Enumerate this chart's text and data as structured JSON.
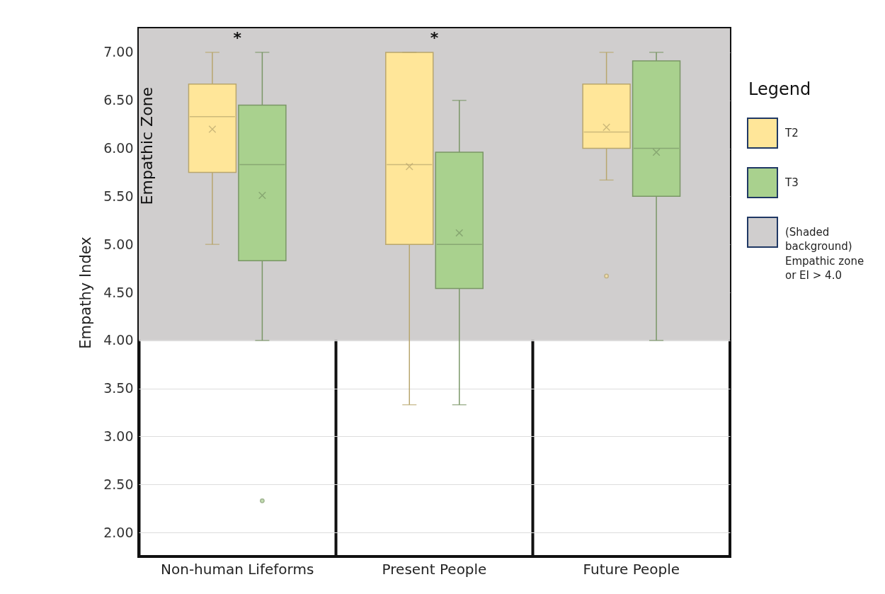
{
  "chart_data": {
    "type": "box",
    "categories": [
      "Non-human Lifeforms",
      "Present People",
      "Future People"
    ],
    "ylabel": "Empathy Index",
    "legend_title": "Legend",
    "legend": "right",
    "grid": "y",
    "ylim": [
      1.75,
      7.25
    ],
    "yticks": [
      {
        "value": 2,
        "label": "2.00"
      },
      {
        "value": 2.5,
        "label": "2.50"
      },
      {
        "value": 3,
        "label": "3.00"
      },
      {
        "value": 3.5,
        "label": "3.50"
      },
      {
        "value": 4,
        "label": "4.00"
      },
      {
        "value": 4.5,
        "label": "4.50"
      },
      {
        "value": 5,
        "label": "5.00"
      },
      {
        "value": 5.5,
        "label": "5.50"
      },
      {
        "value": 6,
        "label": "6.00"
      },
      {
        "value": 6.5,
        "label": "6.50"
      },
      {
        "value": 7,
        "label": "7.00"
      }
    ],
    "series": [
      {
        "name": "T2",
        "color": "#ffe699",
        "boxes": [
          {
            "low": 5.0,
            "q1": 5.75,
            "median": 6.33,
            "q3": 6.67,
            "high": 7.0,
            "mean": 6.2
          },
          {
            "low": 3.33,
            "q1": 5.0,
            "median": 5.83,
            "q3": 7.0,
            "high": 7.0,
            "mean": 5.81
          },
          {
            "low": 5.67,
            "q1": 6.0,
            "median": 6.17,
            "q3": 6.67,
            "high": 7.0,
            "mean": 6.22,
            "outliers": [
              4.67
            ]
          }
        ]
      },
      {
        "name": "T3",
        "color": "#a9d18e",
        "boxes": [
          {
            "low": 4.0,
            "q1": 4.83,
            "median": 5.83,
            "q3": 6.45,
            "high": 7.0,
            "mean": 5.51,
            "outliers": [
              2.33
            ]
          },
          {
            "low": 3.33,
            "q1": 4.54,
            "median": 5.0,
            "q3": 5.96,
            "high": 6.5,
            "mean": 5.12
          },
          {
            "low": 4.0,
            "q1": 5.5,
            "median": 6.0,
            "q3": 6.91,
            "high": 7.0,
            "mean": 5.96
          }
        ]
      }
    ],
    "bands": [
      {
        "axis": "y",
        "from": 4,
        "to": 7.25,
        "label": "Empathic Zone",
        "color": "#d0cece"
      }
    ],
    "annotations": [
      "*",
      "*",
      "(Shaded background) Empathic zone or EI > 4.0"
    ]
  }
}
